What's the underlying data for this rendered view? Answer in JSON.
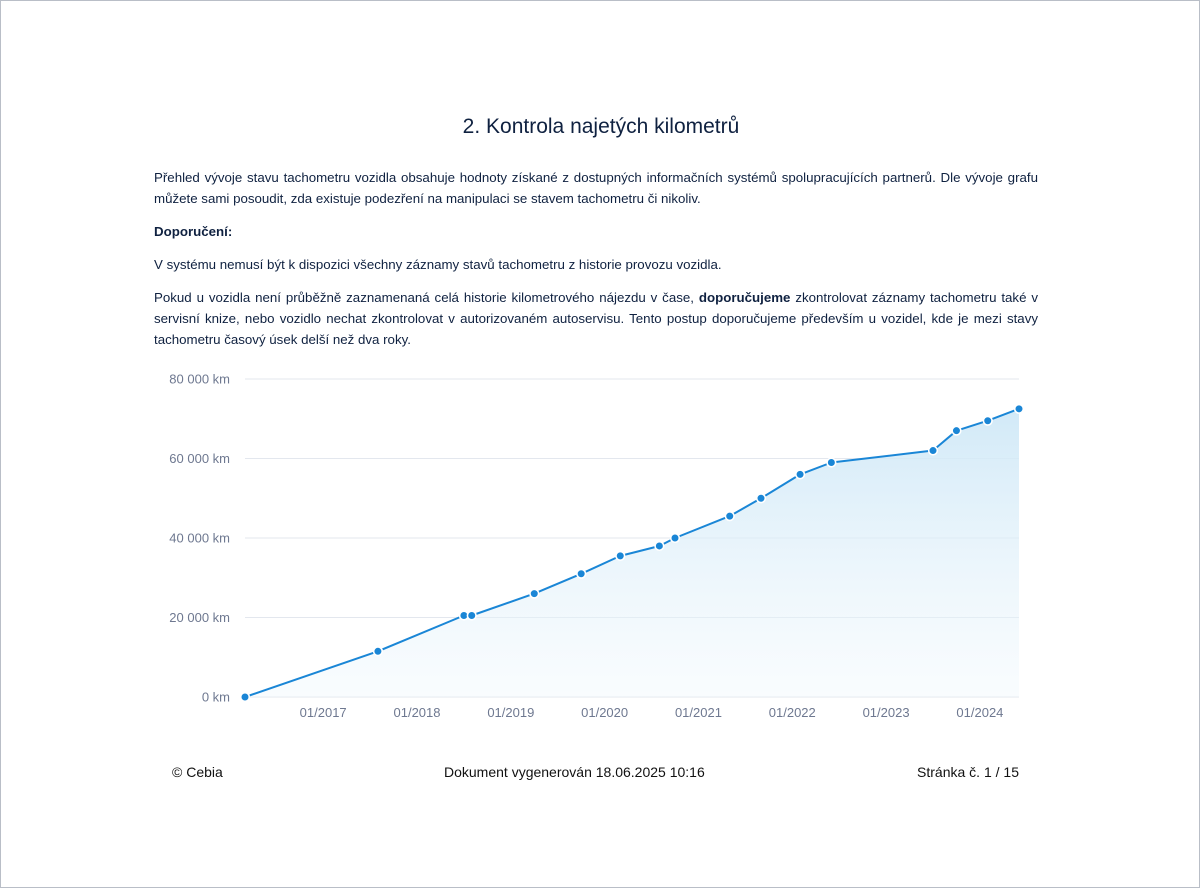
{
  "section_title": "2. Kontrola najetých kilometrů",
  "paragraphs": {
    "intro": "Přehled vývoje stavu tachometru vozidla obsahuje hodnoty získané z dostupných informačních systémů spolupracujících partnerů. Dle vývoje grafu můžete sami posoudit, zda existuje podezření na manipulaci se stavem tachometru či nikoliv.",
    "recommendation_heading": "Doporučení:",
    "note": "V systému nemusí být k dispozici všechny záznamy stavů tachometru z historie provozu vozidla.",
    "advice_part1": "Pokud u vozidla není průběžně zaznamenaná celá historie kilometrového nájezdu v čase, ",
    "advice_bold": "doporučujeme",
    "advice_part2": " zkontrolovat záznamy tachometru také v servisní knize, nebo vozidlo nechat zkontrolovat v autorizovaném autoservisu. Tento postup doporučujeme především u vozidel, kde je mezi stavy tachometru časový úsek delší než dva roky."
  },
  "chart_data": {
    "type": "area",
    "series": [
      {
        "x": [
          "2016-03",
          "2017-08",
          "2018-07",
          "2018-08",
          "2019-04",
          "2019-10",
          "2020-03",
          "2020-08",
          "2020-10",
          "2021-05",
          "2021-09",
          "2022-02",
          "2022-06",
          "2023-07",
          "2023-10",
          "2024-02",
          "2024-06"
        ],
        "y": [
          0,
          11500,
          20500,
          20500,
          26000,
          31000,
          35500,
          38000,
          40000,
          45500,
          50000,
          56000,
          59000,
          62000,
          67000,
          69500,
          72500
        ]
      }
    ],
    "y_ticks": [
      "0 km",
      "20 000 km",
      "40 000 km",
      "60 000 km",
      "80 000 km"
    ],
    "x_ticks": [
      "01/2017",
      "01/2018",
      "01/2019",
      "01/2020",
      "01/2021",
      "01/2022",
      "01/2023",
      "01/2024"
    ],
    "ylim": [
      0,
      80000
    ],
    "xlim": [
      "2016-03",
      "2024-06"
    ],
    "grid": true,
    "colors": {
      "line": "#1a86d6",
      "fill": "#d7ecf8"
    }
  },
  "footer": {
    "copyright": "© Cebia",
    "generated": "Dokument vygenerován 18.06.2025 10:16",
    "page": "Stránka č. 1 / 15"
  }
}
